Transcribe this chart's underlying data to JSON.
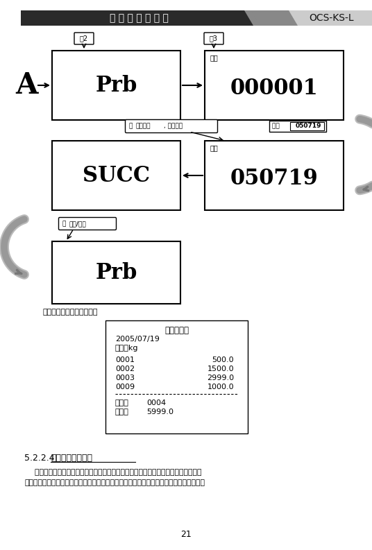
{
  "title_bar_text": "无 线 数 传 式 吊 秤",
  "title_bar_right": "OCS-KS-L",
  "header_bg": "#2a2a2a",
  "header_text_color": "#ffffff",
  "page_bg": "#ffffff",
  "box1_label": "Prb",
  "box2_label": "000001",
  "box2_sublabel": "日期",
  "box3_label": "SUCC",
  "box4_label": "050719",
  "box4_sublabel": "日期",
  "box5_label": "Prb",
  "btn1_text": "按2",
  "btn2_text": "按3",
  "btn3_text": "按关机/取消",
  "btn3_bold": "关机/取消",
  "label_A": "A",
  "arrow_confirm": "按背光确认, 打印清单",
  "arrow_confirm_bold": "背光确认",
  "arrow_input_prefix": "输入",
  "arrow_input_bold": "050719",
  "receipt_title": "稱重计量单",
  "receipt_date": "2005/07/19",
  "receipt_unit": "单位：kg",
  "receipt_rows": [
    [
      "0001",
      "500.0"
    ],
    [
      "0002",
      "1500.0"
    ],
    [
      "0003",
      "2999.0"
    ],
    [
      "0009",
      "1000.0"
    ]
  ],
  "receipt_count_label": "次数：",
  "receipt_count_val": "0004",
  "receipt_total_label": "累计：",
  "receipt_total_val": "5999.0",
  "note_text": "按编号打印称重清单如下：",
  "section_num": "5.2.2.4 ",
  "section_title_bold": "汇总打印模式选择",
  "para1_indent": "    前面列举的打印清单年中，均列出了每一笔的称重记录，然后是总的次数和累计值。",
  "para2": "下面是一个将汇总打印模式由详单改成简约操作示意。经过设置后，再依前面的示图分别按",
  "page_num": "21"
}
